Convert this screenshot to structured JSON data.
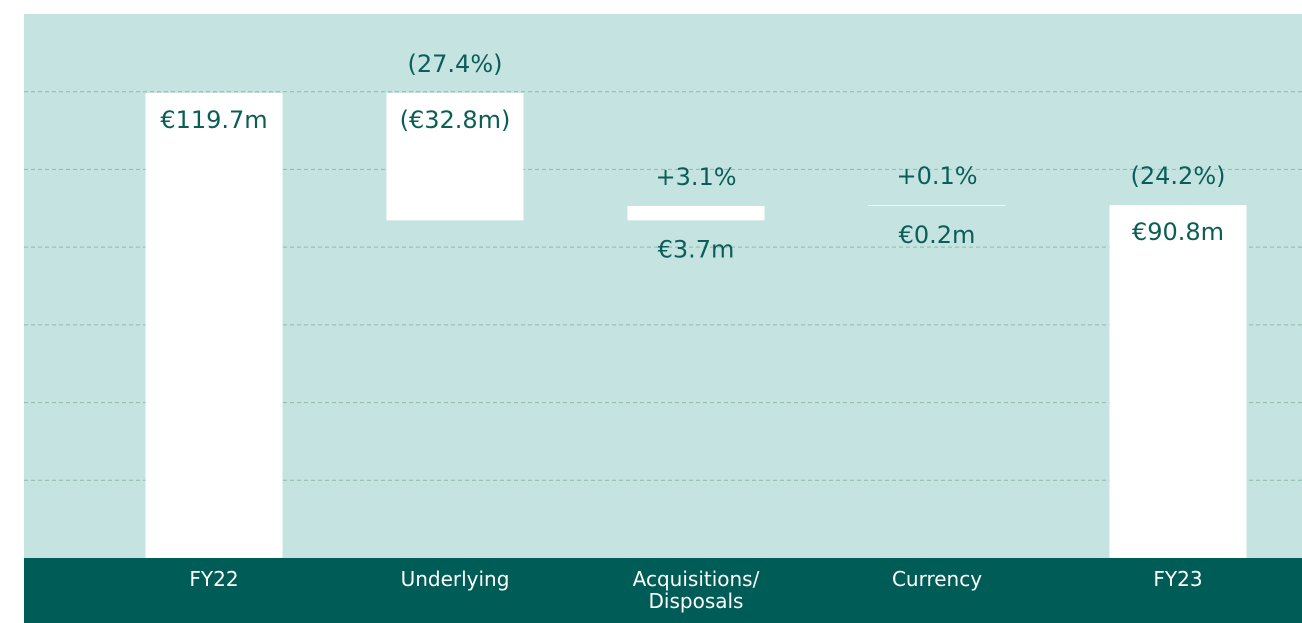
{
  "chart_data": {
    "type": "waterfall",
    "categories": [
      "FY22",
      "Underlying",
      "Acquisitions/ Disposals",
      "Currency",
      "FY23"
    ],
    "values": [
      119.7,
      -32.8,
      3.7,
      0.2,
      90.8
    ],
    "value_labels": [
      "€119.7m",
      "(€32.8m)",
      "€3.7m",
      "€0.2m",
      "€90.8m"
    ],
    "totals": [
      true,
      false,
      false,
      false,
      true
    ],
    "annotations": [
      null,
      "(27.4%)",
      "+3.1%",
      "+0.1%",
      "(24.2%)"
    ],
    "color": "#ffffff",
    "ylim": [
      0,
      140
    ],
    "yticks": [
      20,
      40,
      60,
      80,
      100,
      120
    ],
    "grid": true
  }
}
